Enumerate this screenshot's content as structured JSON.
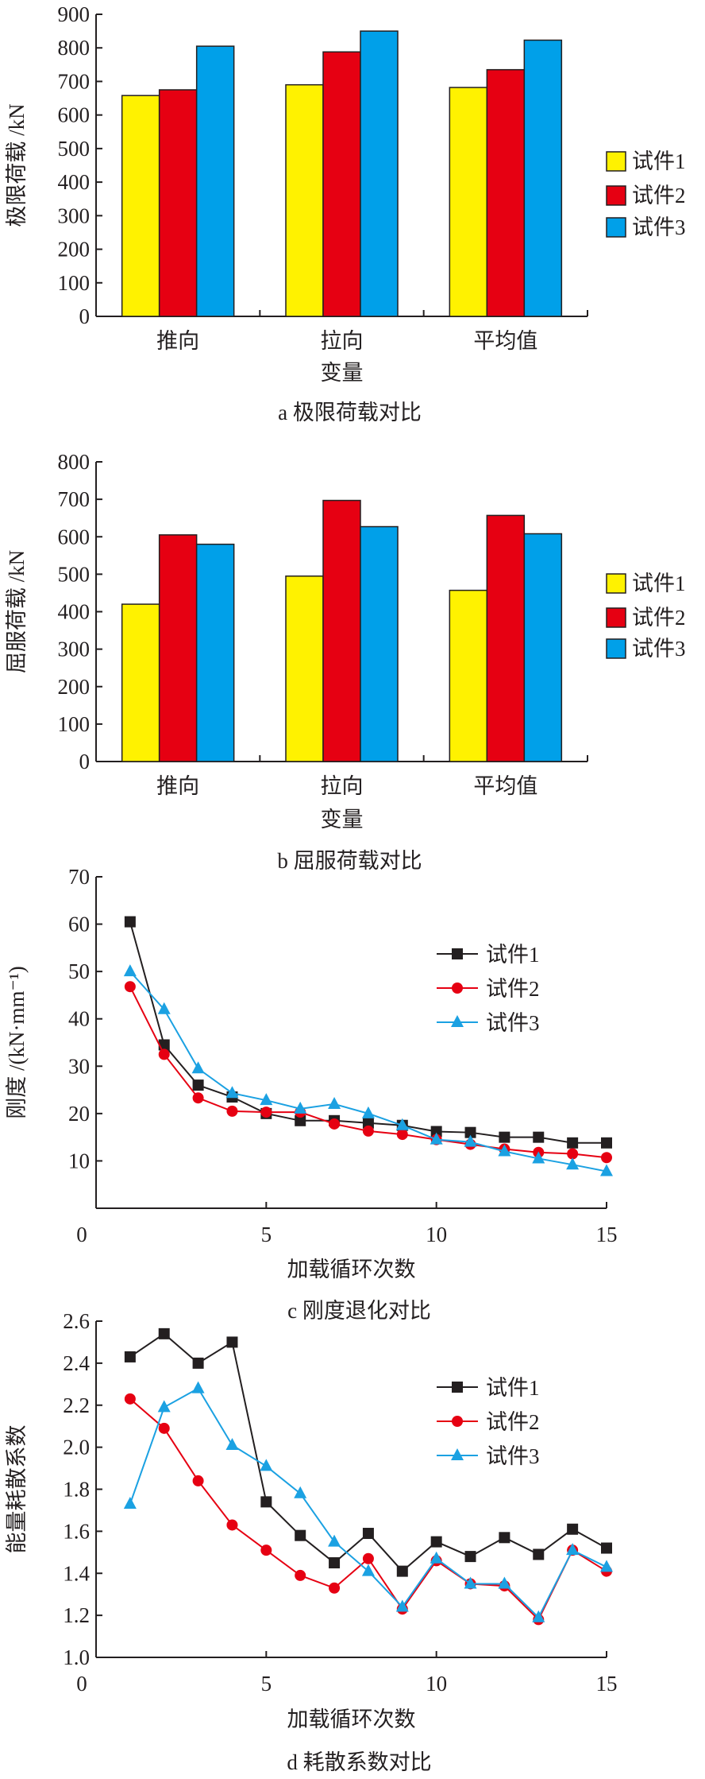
{
  "colors": {
    "s1_bar": "#fff200",
    "s2_bar": "#e60012",
    "s3_bar": "#00a0e9",
    "s1_line": "#231f20",
    "s2_line": "#e60012",
    "s3_line": "#1ba1e2",
    "axis": "#231f20"
  },
  "chart_data": [
    {
      "type": "bar",
      "caption": "a  极限荷载对比",
      "xlabel": "变量",
      "ylabel": "极限荷载 /kN",
      "ylim": [
        0,
        900
      ],
      "yticks": [
        0,
        100,
        200,
        300,
        400,
        500,
        600,
        700,
        800,
        900
      ],
      "categories": [
        "推向",
        "拉向",
        "平均值"
      ],
      "legend_position": "right",
      "series": [
        {
          "name": "试件1",
          "values": [
            658,
            690,
            682
          ]
        },
        {
          "name": "试件2",
          "values": [
            675,
            788,
            735
          ]
        },
        {
          "name": "试件3",
          "values": [
            805,
            850,
            823
          ]
        }
      ]
    },
    {
      "type": "bar",
      "caption": "b  屈服荷载对比",
      "xlabel": "变量",
      "ylabel": "屈服荷载 /kN",
      "ylim": [
        0,
        800
      ],
      "yticks": [
        0,
        100,
        200,
        300,
        400,
        500,
        600,
        700,
        800
      ],
      "categories": [
        "推向",
        "拉向",
        "平均值"
      ],
      "legend_position": "right",
      "series": [
        {
          "name": "试件1",
          "values": [
            420,
            495,
            457
          ]
        },
        {
          "name": "试件2",
          "values": [
            605,
            697,
            657
          ]
        },
        {
          "name": "试件3",
          "values": [
            580,
            627,
            608
          ]
        }
      ]
    },
    {
      "type": "line",
      "caption": "c  刚度退化对比",
      "xlabel": "加载循环次数",
      "ylabel": "刚度 /(kN·mm⁻¹)",
      "xlim": [
        0,
        15
      ],
      "ylim": [
        0,
        70
      ],
      "xticks": [
        0,
        5,
        10,
        15
      ],
      "yticks": [
        10,
        20,
        30,
        40,
        50,
        60,
        70
      ],
      "legend_position": "top-right",
      "x": [
        1,
        2,
        3,
        4,
        5,
        6,
        7,
        8,
        9,
        10,
        11,
        12,
        13,
        14,
        15
      ],
      "series": [
        {
          "name": "试件1",
          "marker": "square",
          "values": [
            60.5,
            34.5,
            26,
            23.5,
            20,
            18.5,
            18.5,
            18,
            17.5,
            16.2,
            16,
            15,
            15,
            13.8,
            13.8
          ]
        },
        {
          "name": "试件2",
          "marker": "circle",
          "values": [
            46.8,
            32.5,
            23.3,
            20.5,
            20.3,
            20.3,
            17.8,
            16.3,
            15.6,
            14.5,
            13.5,
            12.5,
            11.8,
            11.5,
            10.7
          ]
        },
        {
          "name": "试件3",
          "marker": "triangle",
          "values": [
            50,
            42,
            29.5,
            24.3,
            22.8,
            21,
            22,
            20,
            17.5,
            14.5,
            14,
            12,
            10.5,
            9.2,
            7.8
          ]
        }
      ]
    },
    {
      "type": "line",
      "caption": "d  耗散系数对比",
      "xlabel": "加载循环次数",
      "ylabel": "能量耗散系数",
      "xlim": [
        0,
        15
      ],
      "ylim": [
        1.0,
        2.6
      ],
      "xticks": [
        0,
        5,
        10,
        15
      ],
      "yticks": [
        "1.0",
        "1.2",
        "1.4",
        "1.6",
        "1.8",
        "2.0",
        "2.2",
        "2.4",
        "2.6"
      ],
      "legend_position": "top-right",
      "x": [
        1,
        2,
        3,
        4,
        5,
        6,
        7,
        8,
        9,
        10,
        11,
        12,
        13,
        14,
        15
      ],
      "series": [
        {
          "name": "试件1",
          "marker": "square",
          "values": [
            2.43,
            2.54,
            2.4,
            2.5,
            1.74,
            1.58,
            1.45,
            1.59,
            1.41,
            1.55,
            1.48,
            1.57,
            1.49,
            1.61,
            1.52
          ]
        },
        {
          "name": "试件2",
          "marker": "circle",
          "values": [
            2.23,
            2.09,
            1.84,
            1.63,
            1.51,
            1.39,
            1.33,
            1.47,
            1.23,
            1.46,
            1.35,
            1.34,
            1.18,
            1.51,
            1.41
          ]
        },
        {
          "name": "试件3",
          "marker": "triangle",
          "values": [
            1.73,
            2.19,
            2.28,
            2.01,
            1.91,
            1.78,
            1.55,
            1.41,
            1.24,
            1.47,
            1.35,
            1.35,
            1.19,
            1.51,
            1.43
          ]
        }
      ]
    }
  ]
}
